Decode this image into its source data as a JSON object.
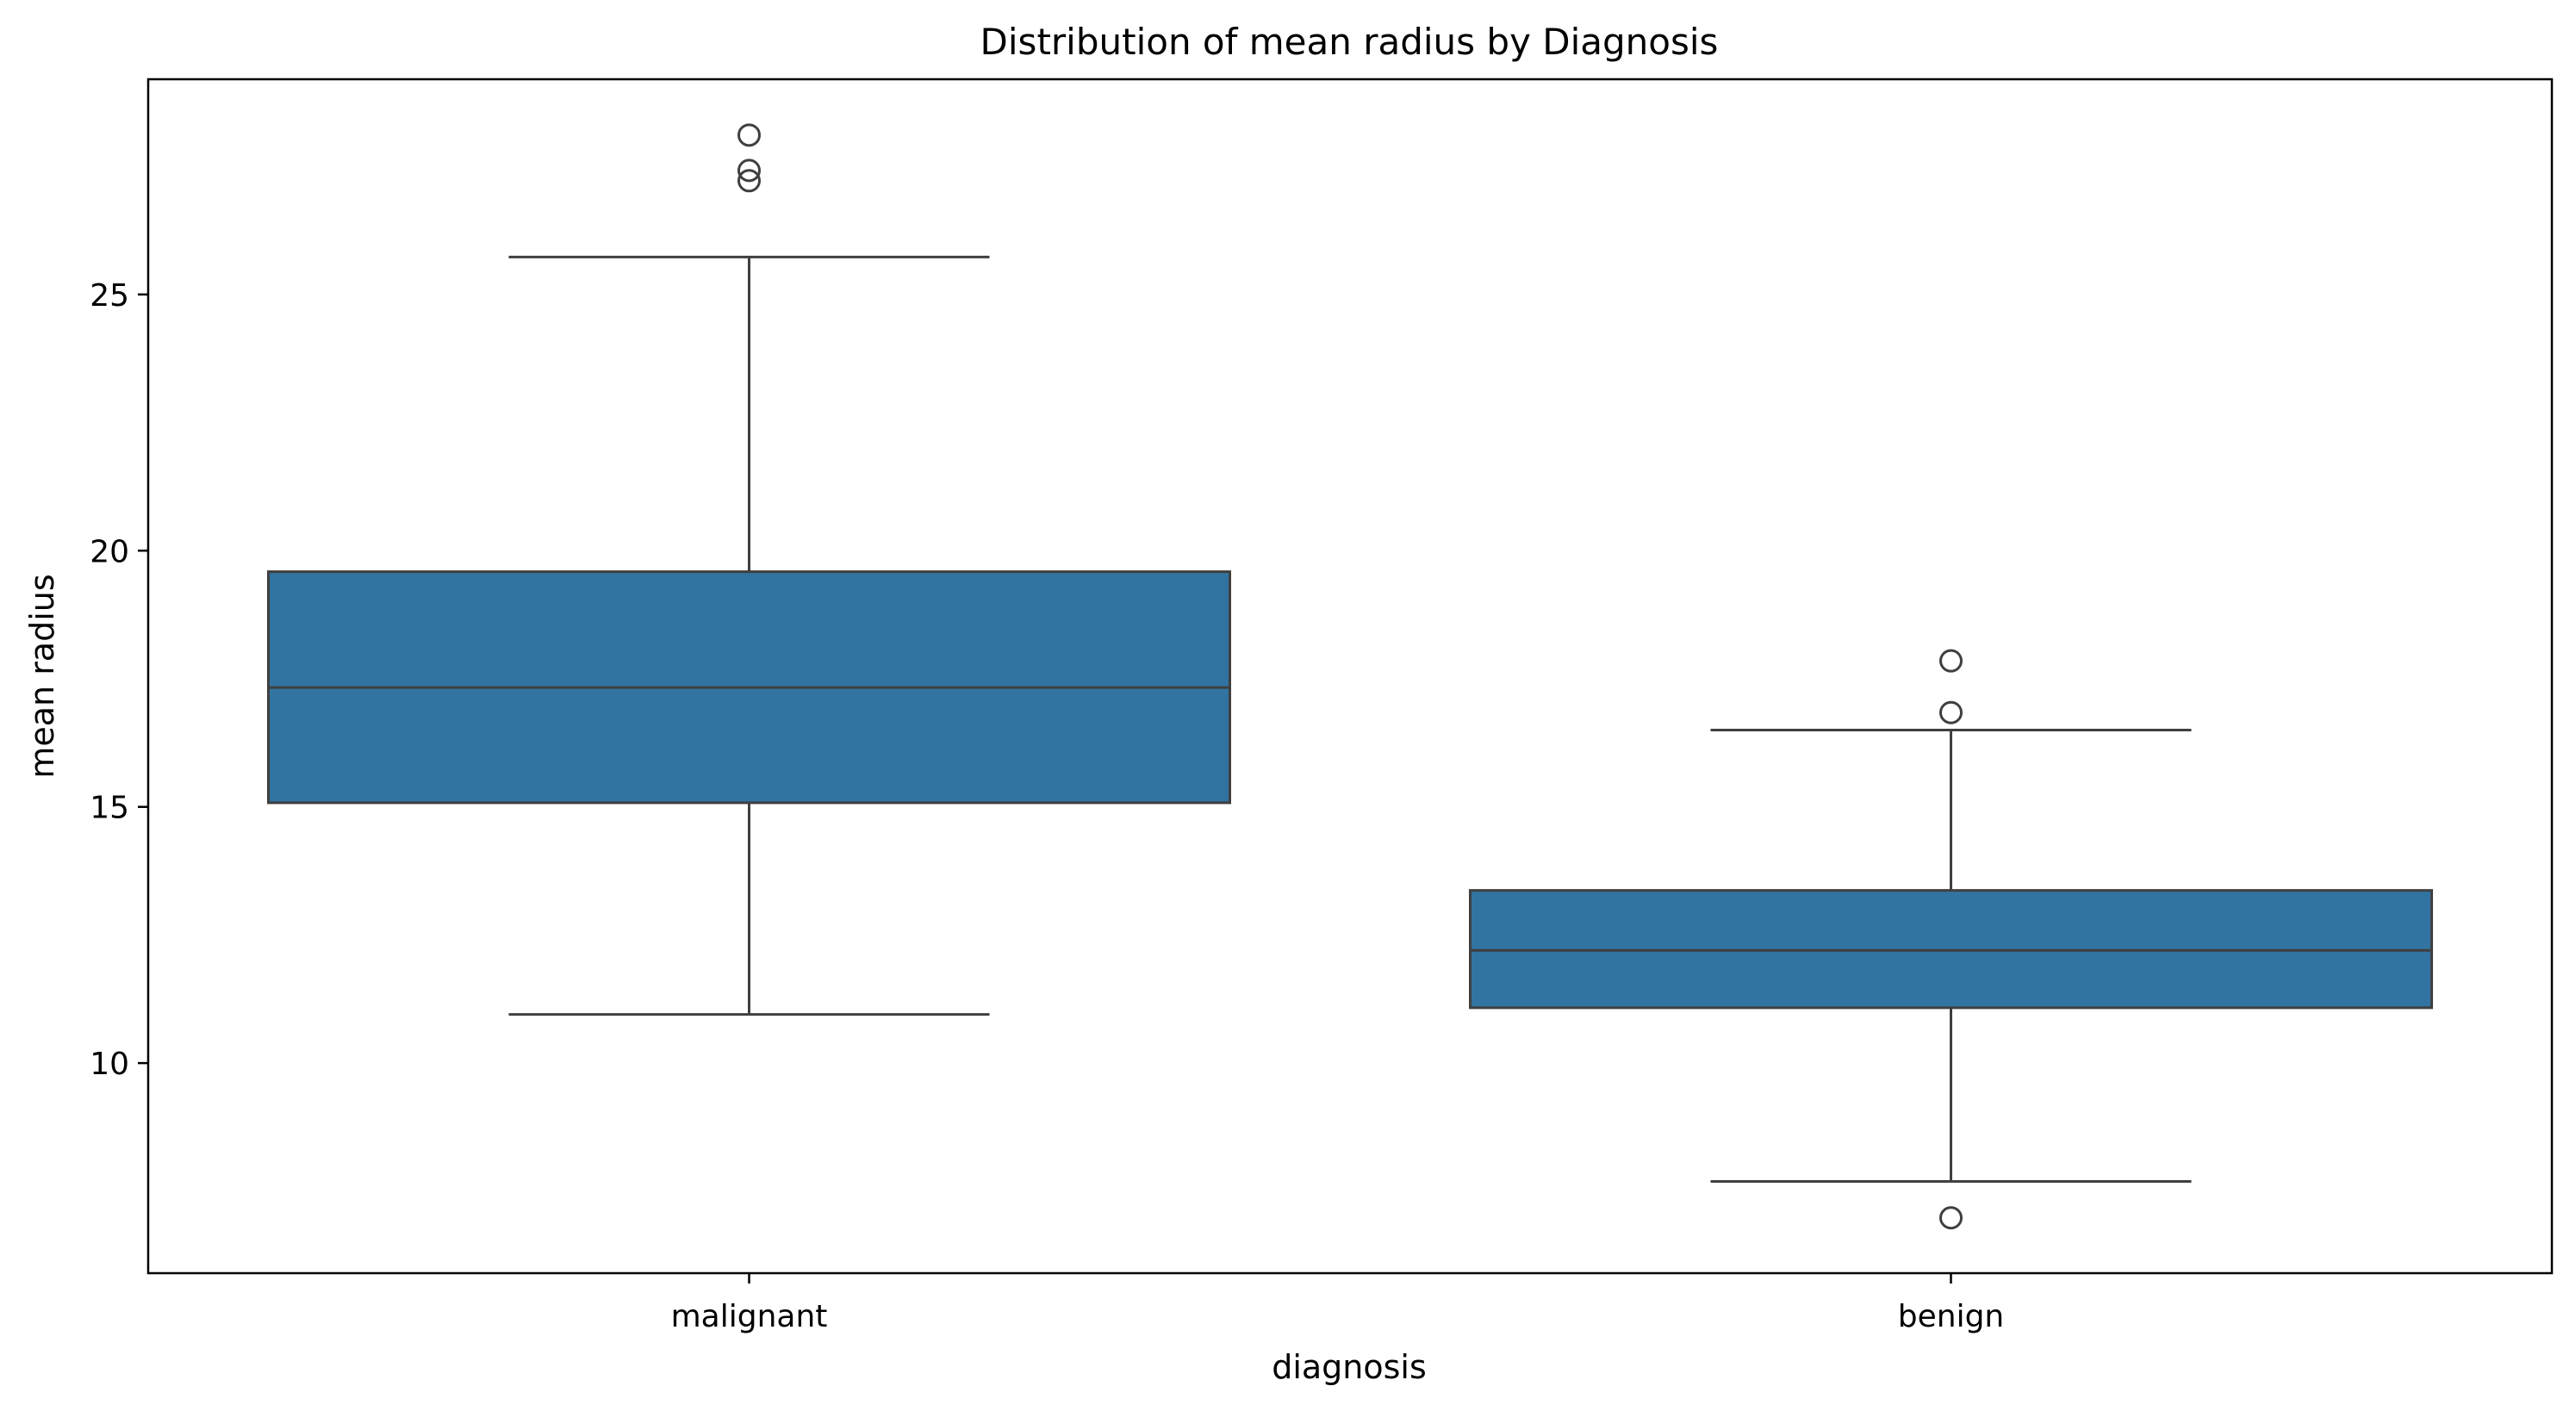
{
  "chart_data": {
    "type": "box",
    "title": "Distribution of mean radius by Diagnosis",
    "xlabel": "diagnosis",
    "ylabel": "mean radius",
    "categories": [
      "malignant",
      "benign"
    ],
    "ylim": [
      5.9,
      29.2
    ],
    "yticks": [
      10,
      15,
      20,
      25
    ],
    "grid": false,
    "legend": "none",
    "box_color": "#3274a1",
    "line_color": "#3f3f3f",
    "boxes": [
      {
        "category": "malignant",
        "whisker_low": 10.95,
        "q1": 15.08,
        "median": 17.33,
        "q3": 19.59,
        "whisker_high": 25.73,
        "outliers": [
          27.22,
          27.42,
          28.11
        ]
      },
      {
        "category": "benign",
        "whisker_low": 7.69,
        "q1": 11.08,
        "median": 12.2,
        "q3": 13.37,
        "whisker_high": 16.5,
        "outliers": [
          6.98,
          16.84,
          17.85
        ]
      }
    ]
  }
}
